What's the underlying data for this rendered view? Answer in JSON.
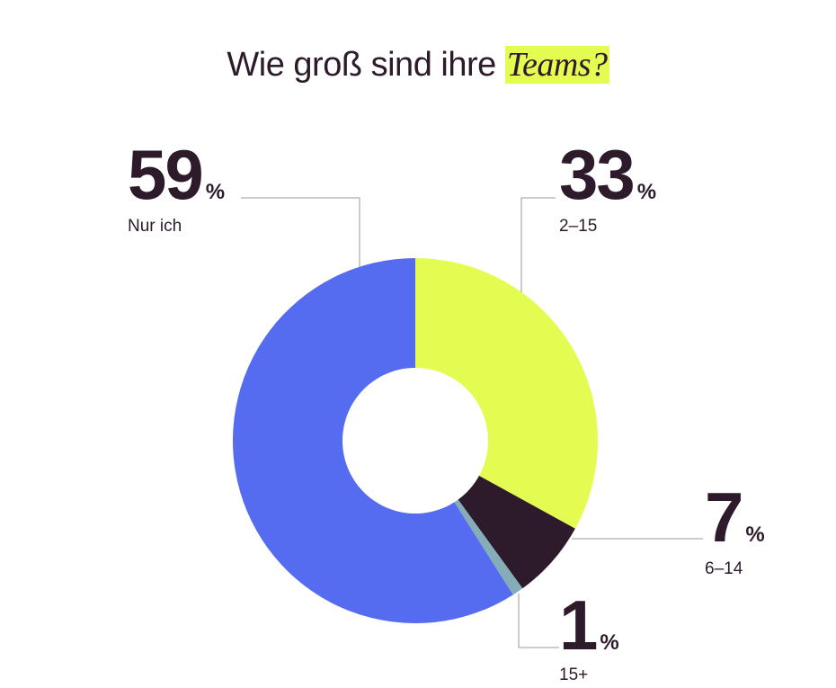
{
  "title": {
    "prefix": "Wie groß sind ihre",
    "highlight": "Teams?"
  },
  "chart_data": {
    "type": "pie",
    "donut": true,
    "slices": [
      {
        "label": "2–15",
        "value": 33,
        "color": "#e4fc52"
      },
      {
        "label": "6–14",
        "value": 7,
        "color": "#2d1b2b"
      },
      {
        "label": "15+",
        "value": 1,
        "color": "#84adb8"
      },
      {
        "label": "Nur ich",
        "value": 59,
        "color": "#566cf0"
      }
    ],
    "unit": "%",
    "start": "top",
    "direction": "clockwise"
  }
}
